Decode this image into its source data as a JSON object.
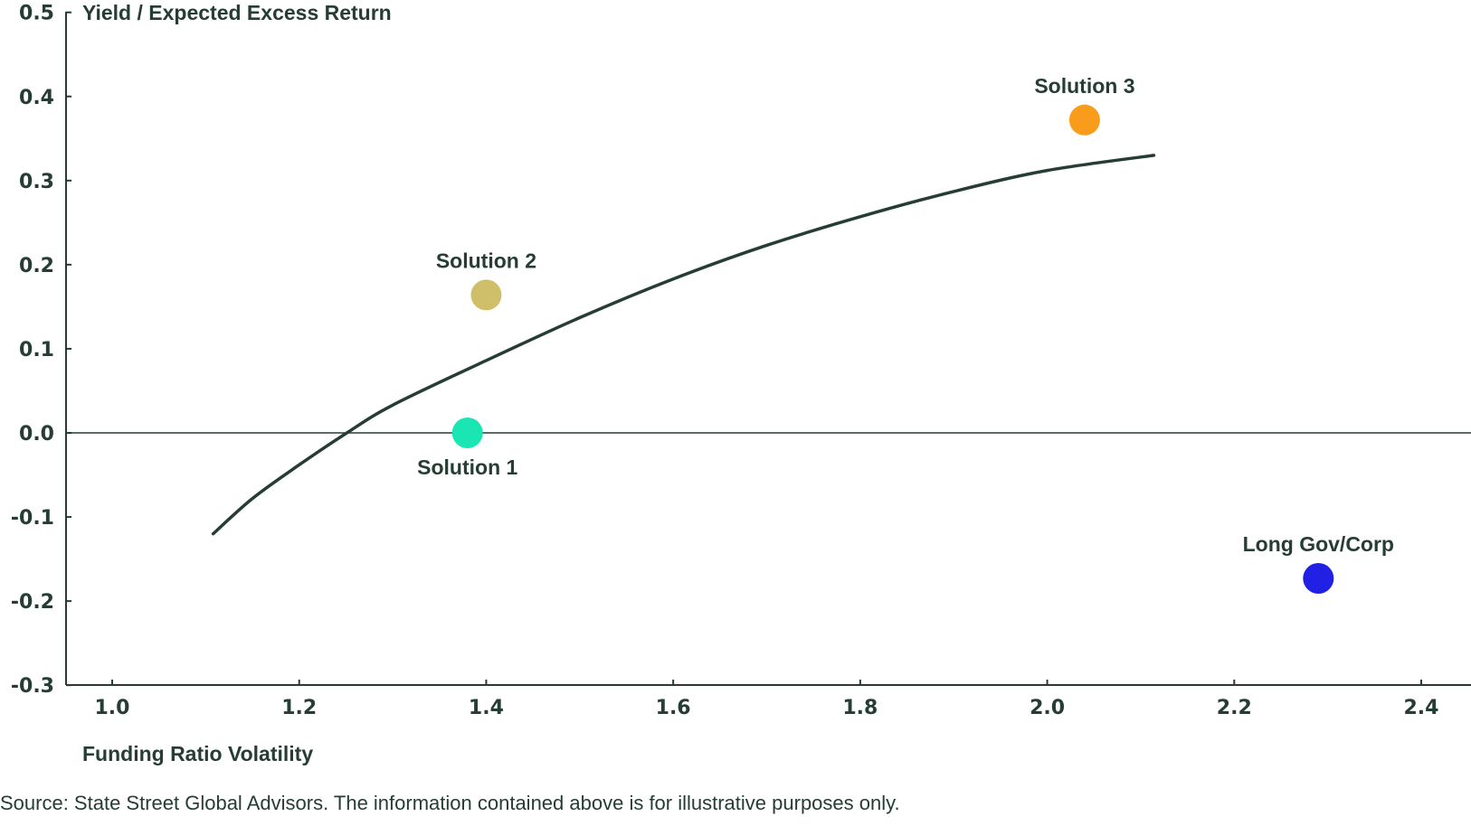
{
  "chart_data": {
    "type": "scatter",
    "title": "",
    "ylabel": "Yield / Expected Excess Return",
    "xlabel": "Funding Ratio Volatility",
    "xlim": [
      1.0,
      2.4
    ],
    "ylim": [
      -0.3,
      0.5
    ],
    "xticks": [
      "1.0",
      "1.2",
      "1.4",
      "1.6",
      "1.8",
      "2.0",
      "2.2",
      "2.4"
    ],
    "yticks": [
      "0.5",
      "0.4",
      "0.3",
      "0.2",
      "0.1",
      "0.0",
      "-0.1",
      "-0.2",
      "-0.3"
    ],
    "grid": false,
    "points": [
      {
        "name": "Solution 1",
        "x": 1.38,
        "y": 0.0,
        "color": "#19e6b2",
        "label_pos": "below"
      },
      {
        "name": "Solution 2",
        "x": 1.4,
        "y": 0.164,
        "color": "#cfbf6b",
        "label_pos": "above"
      },
      {
        "name": "Solution 3",
        "x": 2.04,
        "y": 0.372,
        "color": "#fa9c1b",
        "label_pos": "above"
      },
      {
        "name": "Long Gov/Corp",
        "x": 2.29,
        "y": -0.173,
        "color": "#2121e6",
        "label_pos": "above"
      }
    ],
    "frontier_curve": {
      "color": "#253d33",
      "x": [
        1.108,
        1.15,
        1.2,
        1.251,
        1.3,
        1.4,
        1.5,
        1.6,
        1.7,
        1.8,
        1.9,
        2.0,
        2.114
      ],
      "y": [
        -0.12,
        -0.078,
        -0.038,
        0.0,
        0.033,
        0.086,
        0.137,
        0.183,
        0.223,
        0.257,
        0.287,
        0.312,
        0.33
      ]
    }
  },
  "source": "Source: State Street Global Advisors. The information contained above is for illustrative purposes only."
}
